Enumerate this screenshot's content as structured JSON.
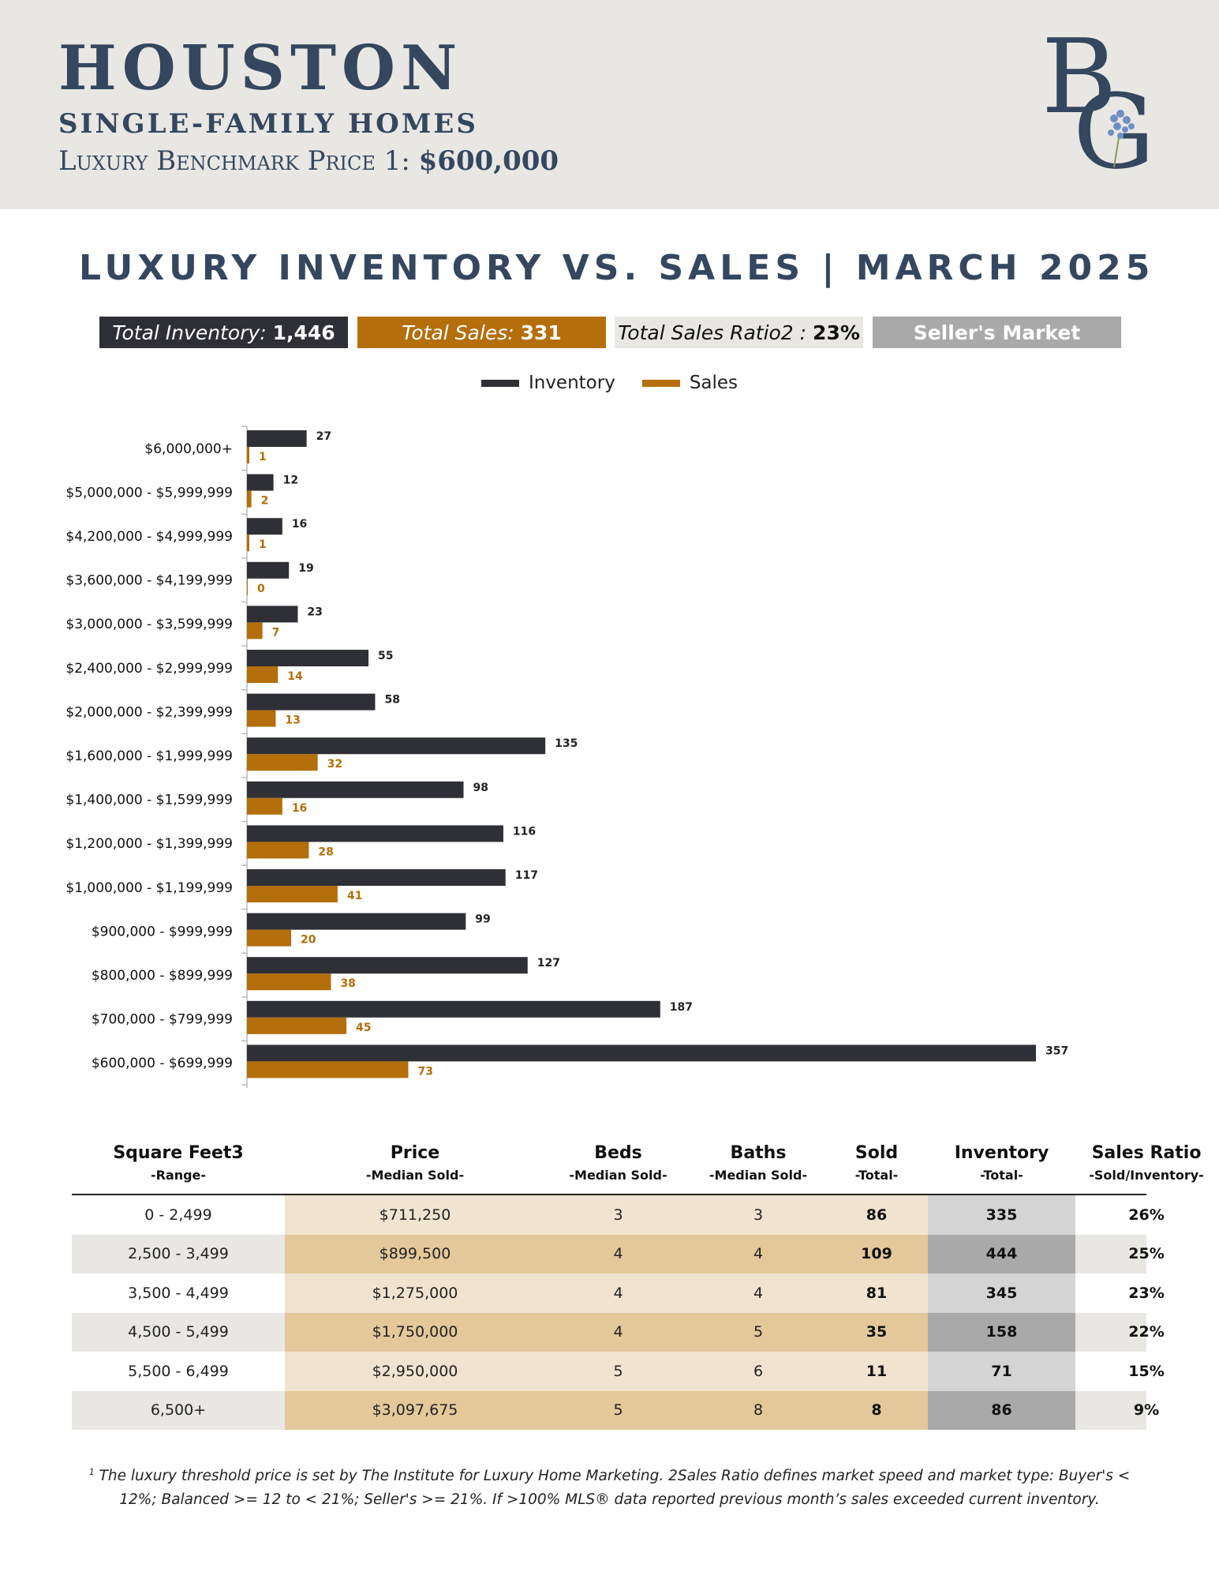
{
  "header": {
    "city": "HOUSTON",
    "subtitle": "SINGLE-FAMILY HOMES",
    "benchmark_label": "Luxury Benchmark Price 1: ",
    "benchmark_value": "$600,000",
    "logo_text": "BG"
  },
  "title": "LUXURY INVENTORY VS. SALES | MARCH 2025",
  "stats": {
    "inventory_label": "Total Inventory: ",
    "inventory_value": "1,446",
    "sales_label": "Total Sales: ",
    "sales_value": "331",
    "ratio_label": "Total Sales Ratio2 : ",
    "ratio_value": "23%",
    "market": "Seller's Market"
  },
  "colors": {
    "inventory": "#2f2f36",
    "sales": "#b46e0a",
    "heading": "#34475f",
    "band": "#e9e7e3"
  },
  "chart_data": {
    "type": "bar",
    "orientation": "horizontal",
    "categories": [
      "$6,000,000+",
      "$5,000,000 - $5,999,999",
      "$4,200,000 - $4,999,999",
      "$3,600,000 - $4,199,999",
      "$3,000,000 - $3,599,999",
      "$2,400,000 - $2,999,999",
      "$2,000,000 - $2,399,999",
      "$1,600,000 - $1,999,999",
      "$1,400,000 - $1,599,999",
      "$1,200,000 - $1,399,999",
      "$1,000,000 - $1,199,999",
      "$900,000 - $999,999",
      "$800,000 - $899,999",
      "$700,000 - $799,999",
      "$600,000 - $699,999"
    ],
    "series": [
      {
        "name": "Inventory",
        "values": [
          27,
          12,
          16,
          19,
          23,
          55,
          58,
          135,
          98,
          116,
          117,
          99,
          127,
          187,
          357
        ]
      },
      {
        "name": "Sales",
        "values": [
          1,
          2,
          1,
          0,
          7,
          14,
          13,
          32,
          16,
          28,
          41,
          20,
          38,
          45,
          73
        ]
      }
    ],
    "xlim": [
      0,
      357
    ],
    "legend": "top-center",
    "grid": false
  },
  "table": {
    "headers": [
      {
        "title": "Square Feet3",
        "sub": "-Range-"
      },
      {
        "title": "Price",
        "sub": "-Median Sold-"
      },
      {
        "title": "Beds",
        "sub": "-Median Sold-"
      },
      {
        "title": "Baths",
        "sub": "-Median Sold-"
      },
      {
        "title": "Sold",
        "sub": "-Total-"
      },
      {
        "title": "Inventory",
        "sub": "-Total-"
      },
      {
        "title": "Sales Ratio",
        "sub": "-Sold/Inventory-"
      }
    ],
    "rows": [
      [
        "0 - 2,499",
        "$711,250",
        "3",
        "3",
        "86",
        "335",
        "26%"
      ],
      [
        "2,500 - 3,499",
        "$899,500",
        "4",
        "4",
        "109",
        "444",
        "25%"
      ],
      [
        "3,500 - 4,499",
        "$1,275,000",
        "4",
        "4",
        "81",
        "345",
        "23%"
      ],
      [
        "4,500 - 5,499",
        "$1,750,000",
        "4",
        "5",
        "35",
        "158",
        "22%"
      ],
      [
        "5,500 - 6,499",
        "$2,950,000",
        "5",
        "6",
        "11",
        "71",
        "15%"
      ],
      [
        "6,500+",
        "$3,097,675",
        "5",
        "8",
        "8",
        "86",
        "9%"
      ]
    ]
  },
  "footnote": {
    "mark": "1",
    "text": "The luxury threshold price is set by The Institute for Luxury Home Marketing. 2Sales Ratio defines market speed and market type: Buyer's < 12%; Balanced >= 12 to < 21%; Seller's >= 21%. If >100% MLS® data reported previous month’s sales exceeded current inventory."
  }
}
